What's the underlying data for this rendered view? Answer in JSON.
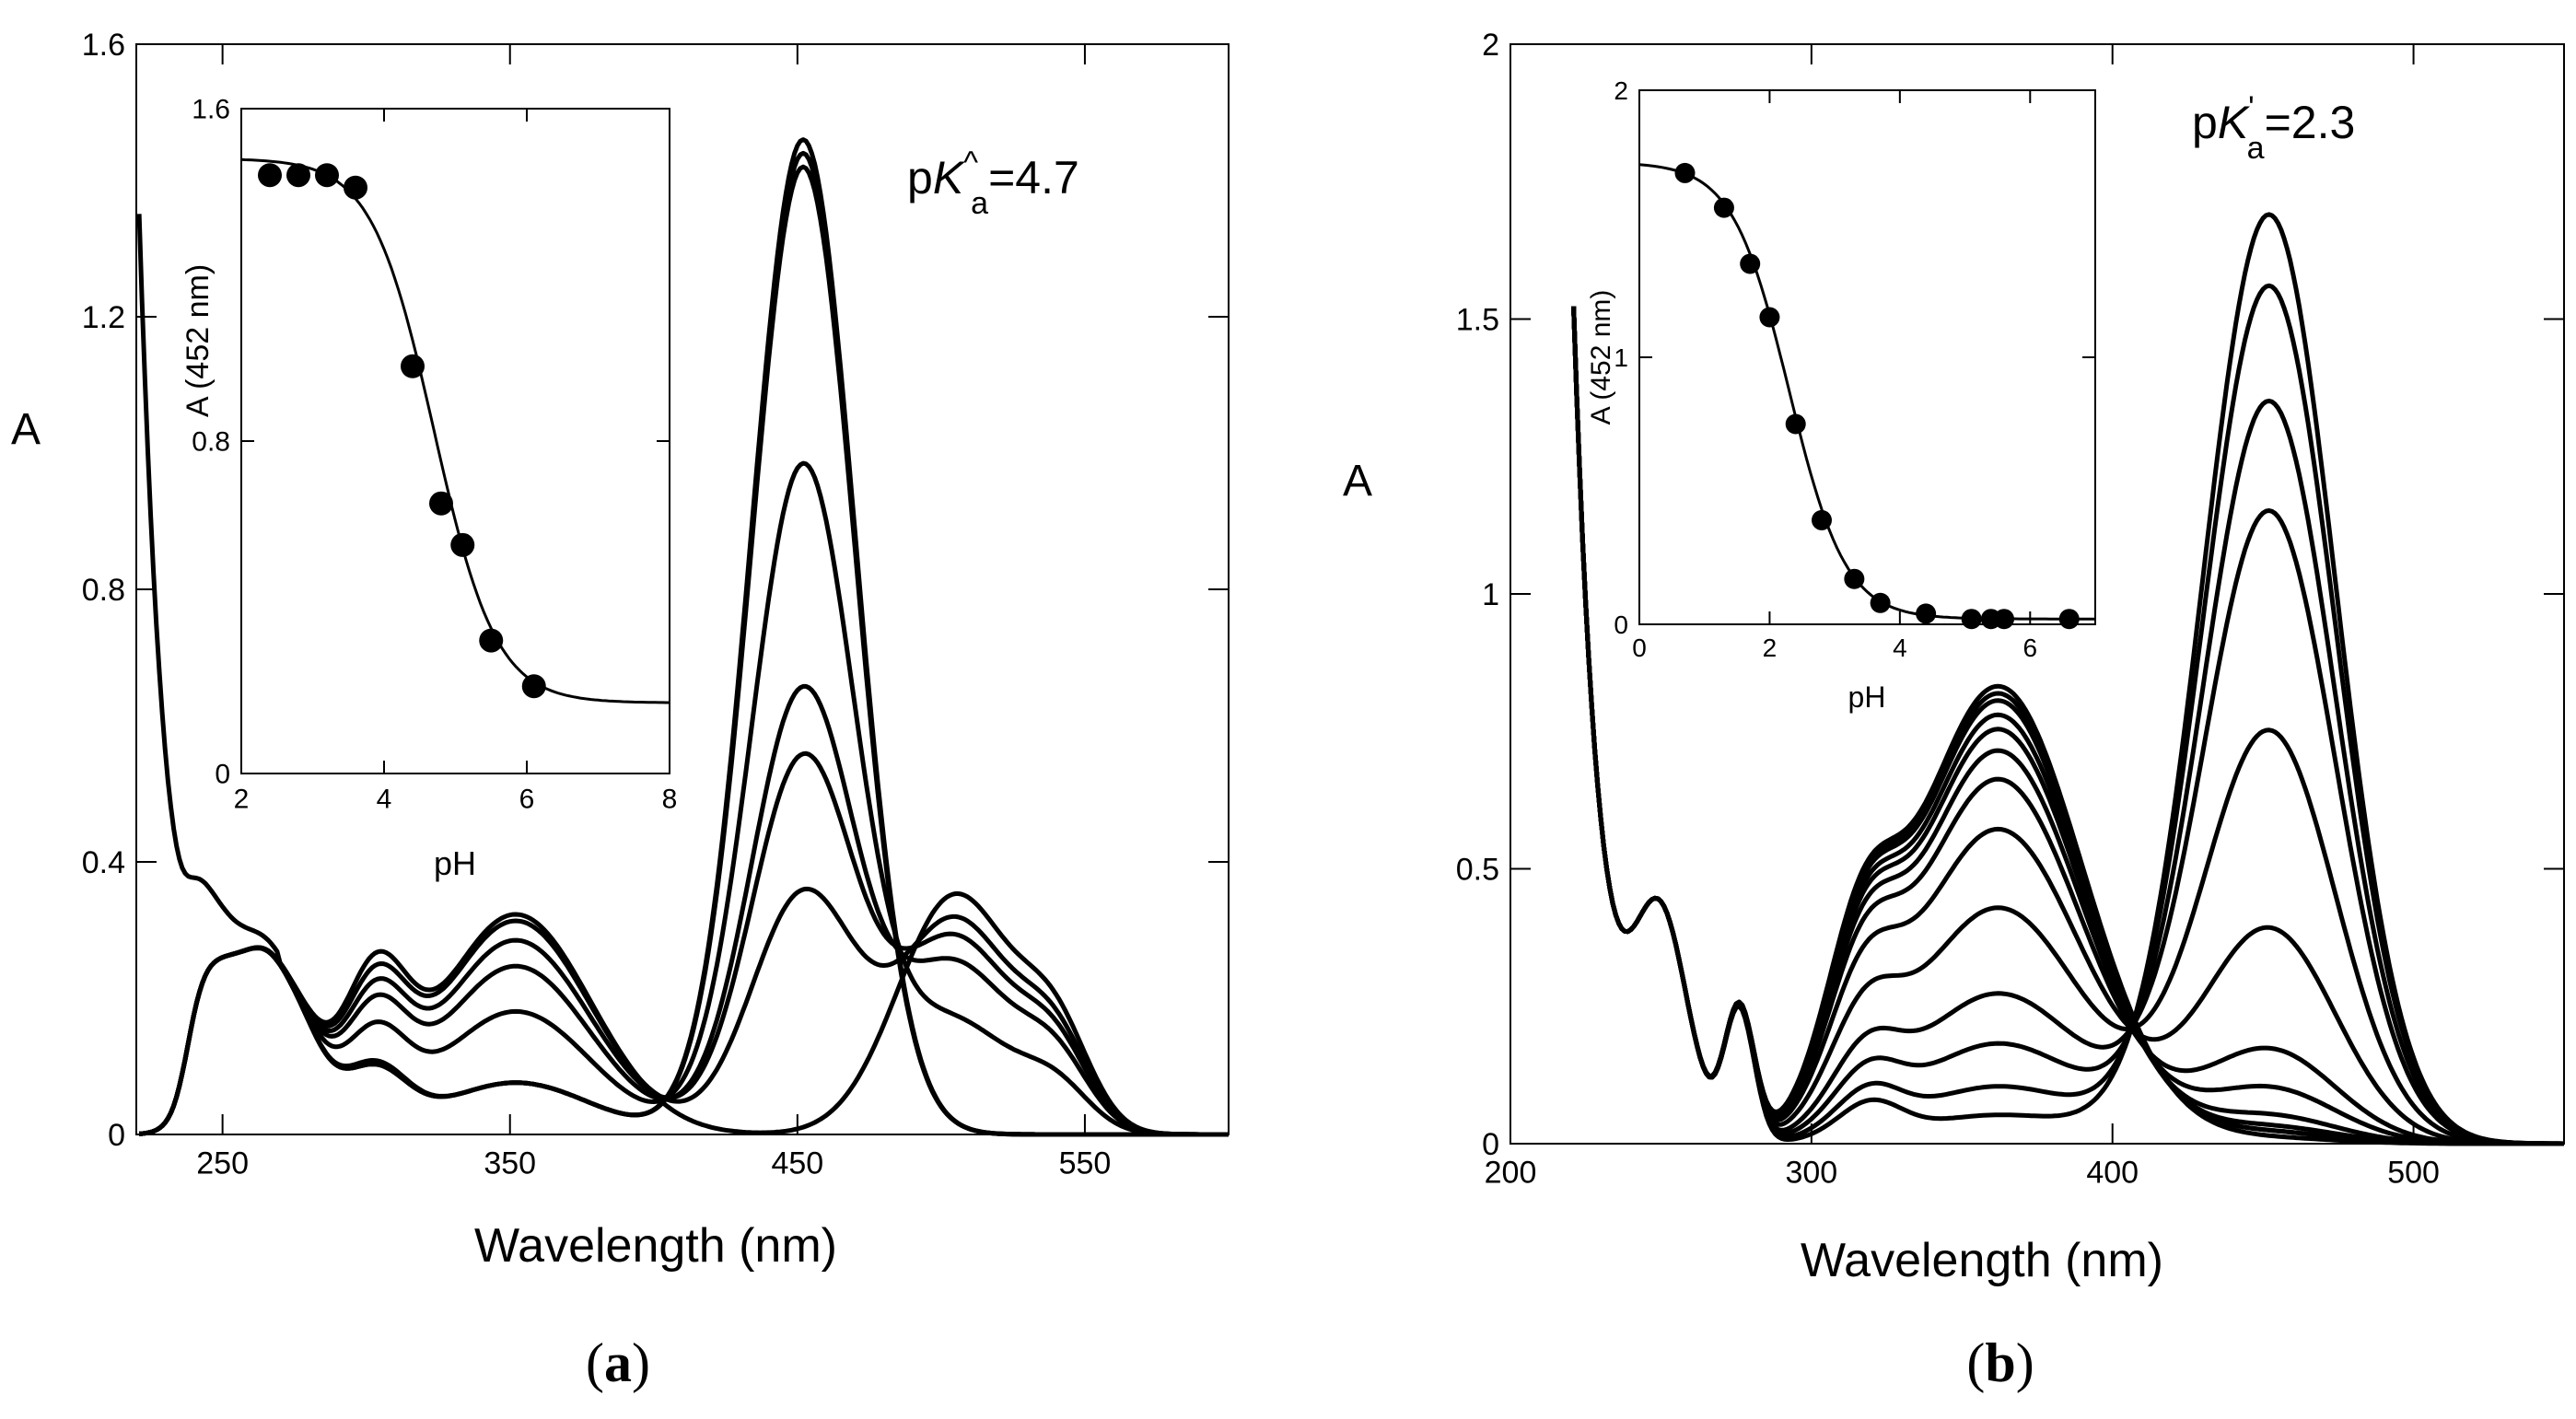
{
  "panels": [
    {
      "id": "a",
      "caption": "a",
      "annotation": {
        "prefix": "p",
        "italic": "K",
        "sup": "^",
        "sub": "a",
        "suffix": "=4.7"
      }
    },
    {
      "id": "b",
      "caption": "b",
      "annotation": {
        "prefix": "p",
        "italic": "K",
        "sup": "'",
        "sub": "a",
        "suffix": "=2.3"
      }
    }
  ],
  "chart_data": [
    {
      "panel": "a",
      "type": "line",
      "title": "",
      "xlabel": "Wavelength (nm)",
      "ylabel": "A",
      "xlim": [
        220,
        600
      ],
      "ylim": [
        0,
        1.6
      ],
      "xticks": [
        250,
        350,
        450,
        550
      ],
      "yticks": [
        0,
        0.4,
        0.8,
        1.2,
        1.6
      ],
      "xtick_labels": [
        "250",
        "350",
        "450",
        "550"
      ],
      "ytick_labels": [
        "0",
        "0.4",
        "0.8",
        "1.2",
        "1.6"
      ],
      "isosbestic_points": [
        [
          393,
          0.2
        ],
        [
          487,
          0.3
        ]
      ],
      "series": [
        {
          "peak452": 1.46,
          "band350": 0.08,
          "band300": 0.16,
          "band505": 0.0
        },
        {
          "peak452": 1.44,
          "band350": 0.08,
          "band300": 0.15,
          "band505": 0.0
        },
        {
          "peak452": 1.42,
          "band350": 0.08,
          "band300": 0.15,
          "band505": 0.0
        },
        {
          "peak452": 0.98,
          "band350": 0.19,
          "band300": 0.23,
          "band505": 0.17
        },
        {
          "peak452": 0.65,
          "band350": 0.26,
          "band300": 0.28,
          "band505": 0.26
        },
        {
          "peak452": 0.55,
          "band350": 0.3,
          "band300": 0.31,
          "band505": 0.3
        },
        {
          "peak452": 0.35,
          "band350": 0.33,
          "band300": 0.34,
          "band505": 0.33
        },
        {
          "peak452": 0.0,
          "band350": 0.34,
          "band300": 0.37,
          "band505": 0.37
        }
      ],
      "inset": {
        "type": "scatter",
        "xlabel": "pH",
        "ylabel": "A (452 nm)",
        "xlim": [
          2,
          8
        ],
        "ylim": [
          0,
          1.6
        ],
        "xticks": [
          2,
          4,
          6,
          8
        ],
        "yticks": [
          0,
          0.8,
          1.6
        ],
        "xtick_labels": [
          "2",
          "4",
          "6",
          "8"
        ],
        "ytick_labels": [
          "0",
          "0.8",
          "1.6"
        ],
        "fit": {
          "pKa": 4.7,
          "upper": 1.48,
          "lower": 0.17,
          "slope": 1.0
        },
        "points": [
          [
            2.4,
            1.44
          ],
          [
            2.8,
            1.44
          ],
          [
            3.2,
            1.44
          ],
          [
            3.6,
            1.41
          ],
          [
            4.4,
            0.98
          ],
          [
            4.8,
            0.65
          ],
          [
            5.1,
            0.55
          ],
          [
            5.5,
            0.32
          ],
          [
            6.1,
            0.21
          ]
        ]
      }
    },
    {
      "panel": "b",
      "type": "line",
      "title": "",
      "xlabel": "Wavelength (nm)",
      "ylabel": "A",
      "xlim": [
        200,
        550
      ],
      "ylim": [
        0,
        2
      ],
      "xticks": [
        200,
        300,
        400,
        500
      ],
      "yticks": [
        0,
        0.5,
        1,
        1.5,
        2
      ],
      "xtick_labels": [
        "200",
        "300",
        "400",
        "500"
      ],
      "ytick_labels": [
        "0",
        "0.5",
        "1",
        "1.5",
        "2"
      ],
      "isosbestic_points": [
        [
          282,
          0.29
        ],
        [
          401,
          0.33
        ]
      ],
      "series": [
        {
          "peak452": 1.69,
          "band362": 0.04
        },
        {
          "peak452": 1.56,
          "band362": 0.08
        },
        {
          "peak452": 1.35,
          "band362": 0.14
        },
        {
          "peak452": 1.15,
          "band362": 0.21
        },
        {
          "peak452": 0.75,
          "band362": 0.33
        },
        {
          "peak452": 0.39,
          "band362": 0.44
        },
        {
          "peak452": 0.17,
          "band362": 0.51
        },
        {
          "peak452": 0.1,
          "band362": 0.55
        },
        {
          "peak452": 0.05,
          "band362": 0.58
        },
        {
          "peak452": 0.03,
          "band362": 0.6
        },
        {
          "peak452": 0.02,
          "band362": 0.62
        },
        {
          "peak452": 0.02,
          "band362": 0.63
        },
        {
          "peak452": 0.01,
          "band362": 0.64
        }
      ],
      "inset": {
        "type": "scatter",
        "xlabel": "pH",
        "ylabel": "A (452 nm)",
        "xlim": [
          0,
          7
        ],
        "ylim": [
          0,
          2
        ],
        "xticks": [
          0,
          2,
          4,
          6
        ],
        "yticks": [
          0,
          1,
          2
        ],
        "xtick_labels": [
          "0",
          "2",
          "4",
          "6"
        ],
        "ytick_labels": [
          "0",
          "1",
          "2"
        ],
        "fit": {
          "pKa": 2.3,
          "upper": 1.73,
          "lower": 0.02,
          "slope": 1.0
        },
        "points": [
          [
            0.7,
            1.69
          ],
          [
            1.3,
            1.56
          ],
          [
            1.7,
            1.35
          ],
          [
            2.0,
            1.15
          ],
          [
            2.4,
            0.75
          ],
          [
            2.8,
            0.39
          ],
          [
            3.3,
            0.17
          ],
          [
            3.7,
            0.08
          ],
          [
            4.4,
            0.04
          ],
          [
            5.1,
            0.02
          ],
          [
            5.4,
            0.02
          ],
          [
            5.6,
            0.02
          ],
          [
            6.6,
            0.02
          ]
        ]
      }
    }
  ]
}
